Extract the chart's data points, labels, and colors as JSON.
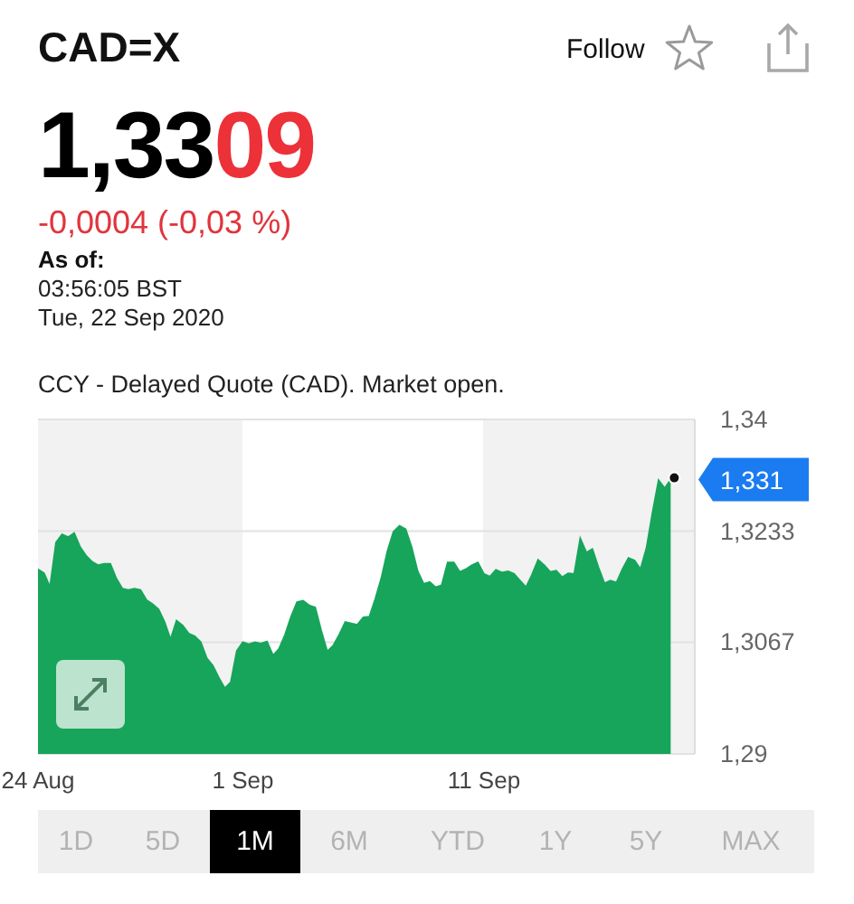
{
  "chart_data": {
    "type": "area",
    "title": "CAD=X",
    "annotations": [
      "1,3309",
      "-0,0004 (-0,03 %)",
      "As of:",
      "03:56:05 BST",
      "Tue, 22 Sep 2020",
      "CCY - Delayed Quote (CAD). Market open.",
      "Follow",
      "1D",
      "5D",
      "1M",
      "6M",
      "YTD",
      "1Y",
      "5Y",
      "MAX",
      "1,331"
    ],
    "categories": [
      "24 Aug",
      null,
      null,
      null,
      null,
      null,
      null,
      null,
      null,
      null,
      null,
      null,
      null,
      null,
      null,
      null,
      null,
      null,
      null,
      null,
      null,
      null,
      null,
      null,
      null,
      null,
      null,
      null,
      null,
      null,
      null,
      null,
      null,
      null,
      "1 Sep",
      null,
      null,
      null,
      null,
      null,
      null,
      null,
      null,
      null,
      null,
      null,
      null,
      null,
      null,
      null,
      null,
      null,
      null,
      null,
      null,
      null,
      null,
      null,
      null,
      null,
      null,
      null,
      null,
      null,
      null,
      null,
      null,
      null,
      null,
      null,
      null,
      null,
      null,
      null,
      "11 Sep",
      null,
      null,
      null,
      null,
      null,
      null,
      null,
      null,
      null,
      null,
      null,
      null,
      null,
      null,
      null,
      null,
      null,
      null,
      null,
      null,
      null,
      null,
      null,
      null,
      null,
      null,
      null,
      null,
      null,
      null,
      null,
      null,
      null,
      null,
      null
    ],
    "values": [
      1.3176,
      1.317,
      1.3149,
      1.3216,
      1.3228,
      1.3224,
      1.323,
      1.3209,
      1.3196,
      1.3187,
      1.3182,
      1.3184,
      1.3184,
      1.3162,
      1.3147,
      1.3145,
      1.3147,
      1.3145,
      1.313,
      1.3124,
      1.3116,
      1.3097,
      1.3071,
      1.3099,
      1.3092,
      1.308,
      1.3076,
      1.3067,
      1.3043,
      1.3032,
      1.3014,
      1.2998,
      1.3007,
      1.3054,
      1.3067,
      1.3064,
      1.3067,
      1.3065,
      1.3068,
      1.3047,
      1.3057,
      1.3078,
      1.3105,
      1.3127,
      1.3129,
      1.3122,
      1.3119,
      1.3084,
      1.3053,
      1.3062,
      1.3078,
      1.3097,
      1.3095,
      1.3093,
      1.3104,
      1.3105,
      1.3132,
      1.3163,
      1.3203,
      1.3232,
      1.3241,
      1.3236,
      1.3209,
      1.3173,
      1.3154,
      1.3157,
      1.3149,
      1.3152,
      1.3186,
      1.3186,
      1.3172,
      1.3176,
      1.3182,
      1.3186,
      1.3169,
      1.3165,
      1.3175,
      1.3171,
      1.3173,
      1.3169,
      1.3159,
      1.3149,
      1.3168,
      1.319,
      1.3182,
      1.3172,
      1.3174,
      1.3164,
      1.317,
      1.3169,
      1.3222,
      1.3201,
      1.3206,
      1.3179,
      1.3155,
      1.3159,
      1.3156,
      1.3176,
      1.3193,
      1.3189,
      1.3176,
      1.3208,
      1.3261,
      1.3309,
      1.3297,
      1.331,
      null,
      null,
      null,
      null
    ],
    "color": "#17a55b",
    "ylim": [
      1.29,
      1.34
    ],
    "yticks": [
      {
        "value": 1.29,
        "label": "1,29"
      },
      {
        "value": 1.3067,
        "label": "1,3067"
      },
      {
        "value": 1.3233,
        "label": "1,3233"
      },
      {
        "value": 1.34,
        "label": "1,34"
      }
    ],
    "grid": "y"
  }
}
